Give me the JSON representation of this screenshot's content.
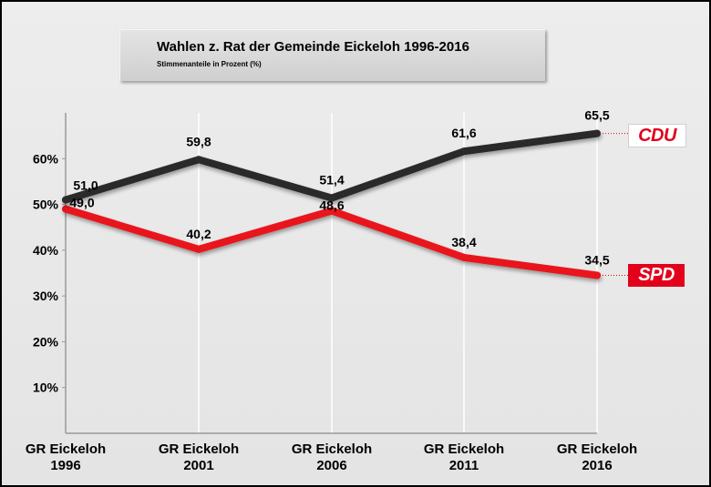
{
  "title": "Wahlen z. Rat der Gemeinde Eickeloh 1996-2016",
  "subtitle": "Stimmenanteile in Prozent (%)",
  "chart_data": {
    "type": "line",
    "title": "Wahlen z. Rat der Gemeinde Eickeloh 1996-2016",
    "subtitle": "Stimmenanteile in Prozent (%)",
    "categories": [
      [
        "GR Eickeloh",
        "1996"
      ],
      [
        "GR Eickeloh",
        "2001"
      ],
      [
        "GR Eickeloh",
        "2006"
      ],
      [
        "GR Eickeloh",
        "2011"
      ],
      [
        "GR Eickeloh",
        "2016"
      ]
    ],
    "y_ticks": [
      "10%",
      "20%",
      "30%",
      "40%",
      "50%",
      "60%"
    ],
    "ylim": [
      0,
      70
    ],
    "grid": "vertical",
    "series": [
      {
        "name": "CDU",
        "color": "#2b2b2b",
        "values": [
          51.0,
          59.8,
          51.4,
          61.6,
          65.5
        ],
        "labels": [
          "51,0",
          "59,8",
          "51,4",
          "61,6",
          "65,5"
        ]
      },
      {
        "name": "SPD",
        "color": "#e8151b",
        "values": [
          49.0,
          40.2,
          48.6,
          38.4,
          34.5
        ],
        "labels": [
          "49,0",
          "40,2",
          "48,6",
          "38,4",
          "34,5"
        ]
      }
    ]
  }
}
